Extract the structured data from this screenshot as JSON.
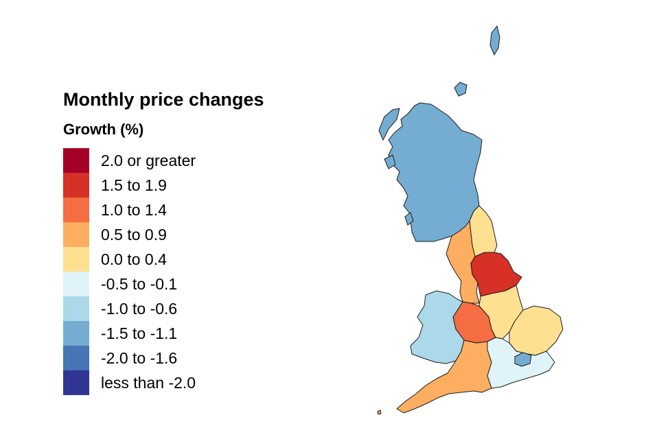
{
  "legend": {
    "title": "Monthly price changes",
    "subtitle": "Growth (%)",
    "items": [
      {
        "label": "2.0 or greater",
        "color": "#a50026"
      },
      {
        "label": "1.5 to 1.9",
        "color": "#d73027"
      },
      {
        "label": "1.0 to 1.4",
        "color": "#f46d43"
      },
      {
        "label": "0.5 to 0.9",
        "color": "#fdae61"
      },
      {
        "label": "0.0 to 0.4",
        "color": "#fee090"
      },
      {
        "label": "-0.5 to -0.1",
        "color": "#e0f3f8"
      },
      {
        "label": "-1.0 to -0.6",
        "color": "#abd9e9"
      },
      {
        "label": "-1.5 to -1.1",
        "color": "#74add1"
      },
      {
        "label": "-2.0 to -1.6",
        "color": "#4575b4"
      },
      {
        "label": "less than -2.0",
        "color": "#313695"
      }
    ]
  },
  "map": {
    "regions": [
      {
        "name": "Scotland",
        "growth_band": "-1.5 to -1.1",
        "color": "#74add1"
      },
      {
        "name": "North East",
        "growth_band": "0.0 to 0.4",
        "color": "#fee090"
      },
      {
        "name": "North West",
        "growth_band": "0.5 to 0.9",
        "color": "#fdae61"
      },
      {
        "name": "Yorkshire and The Humber",
        "growth_band": "1.5 to 1.9",
        "color": "#d73027"
      },
      {
        "name": "East Midlands",
        "growth_band": "0.0 to 0.4",
        "color": "#fee090"
      },
      {
        "name": "West Midlands",
        "growth_band": "1.0 to 1.4",
        "color": "#f46d43"
      },
      {
        "name": "East of England",
        "growth_band": "0.0 to 0.4",
        "color": "#fee090"
      },
      {
        "name": "London",
        "growth_band": "-1.5 to -1.1",
        "color": "#74add1"
      },
      {
        "name": "South East",
        "growth_band": "-0.5 to -0.1",
        "color": "#e0f3f8"
      },
      {
        "name": "South West",
        "growth_band": "0.5 to 0.9",
        "color": "#fdae61"
      },
      {
        "name": "Wales",
        "growth_band": "-1.0 to -0.6",
        "color": "#abd9e9"
      }
    ]
  }
}
